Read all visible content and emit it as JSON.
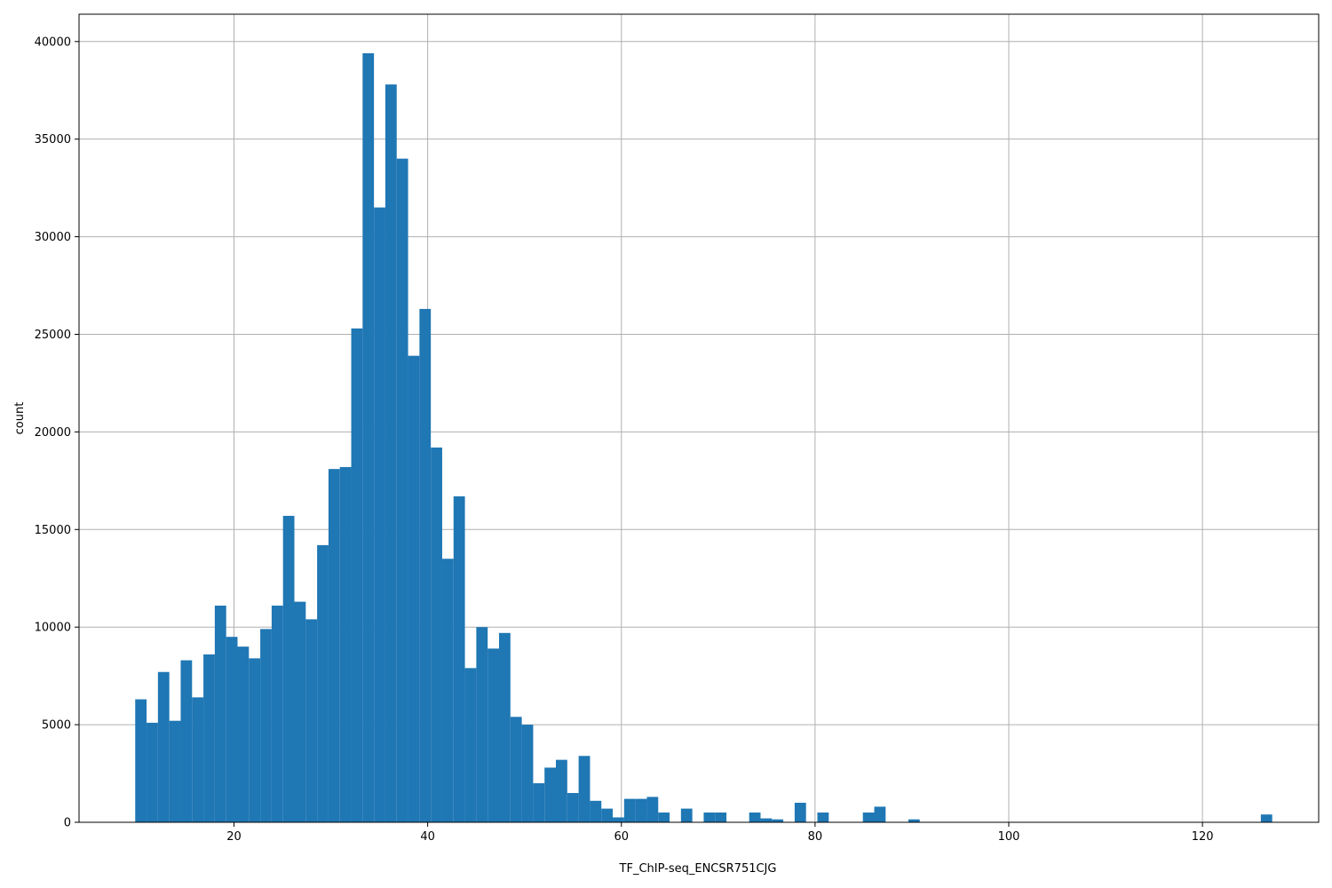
{
  "chart_data": {
    "type": "bar",
    "subtype": "histogram",
    "title": "",
    "xlabel": "TF_ChIP-seq_ENCSR751CJG",
    "ylabel": "count",
    "xlim": [
      4,
      132
    ],
    "ylim": [
      0,
      41400
    ],
    "x_ticks": [
      20,
      40,
      60,
      80,
      100,
      120
    ],
    "y_ticks": [
      0,
      5000,
      10000,
      15000,
      20000,
      25000,
      30000,
      35000,
      40000
    ],
    "grid": true,
    "bar_color": "#1f77b4",
    "bin_start": 9.8,
    "bin_width": 1.174,
    "values": [
      6300,
      5100,
      7700,
      5200,
      8300,
      6400,
      8600,
      11100,
      9500,
      9000,
      8400,
      9900,
      11100,
      15700,
      11300,
      10400,
      14200,
      18100,
      18200,
      25300,
      39400,
      31500,
      37800,
      34000,
      23900,
      26300,
      19200,
      13500,
      16700,
      7900,
      10000,
      8900,
      9700,
      5400,
      5000,
      2000,
      2800,
      3200,
      1500,
      3400,
      1100,
      700,
      250,
      1200,
      1200,
      1300,
      500,
      0,
      700,
      0,
      500,
      500,
      0,
      0,
      500,
      200,
      150,
      0,
      1000,
      0,
      500,
      0,
      0,
      0,
      500,
      800,
      0,
      0,
      150,
      0,
      0,
      0,
      0,
      0,
      0,
      0,
      0,
      0,
      0,
      0,
      0,
      0,
      0,
      0,
      0,
      0,
      0,
      0,
      0,
      0,
      0,
      0,
      0,
      0,
      0,
      0,
      0,
      0,
      0,
      400
    ]
  }
}
